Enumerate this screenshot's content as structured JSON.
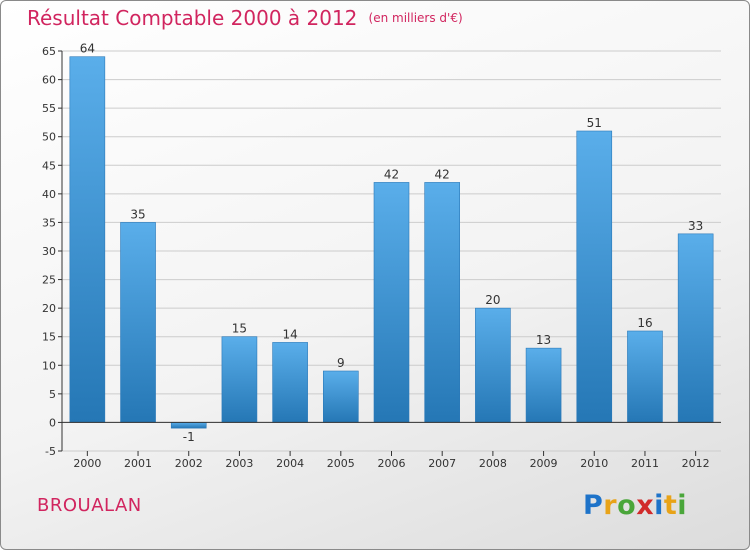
{
  "title": "Résultat Comptable 2000 à 2012",
  "unit": "(en milliers d'€)",
  "place": "BROUALAN",
  "logo": {
    "letters": [
      {
        "ch": "P",
        "color": "#1e73c9"
      },
      {
        "ch": "r",
        "color": "#e8a318"
      },
      {
        "ch": "o",
        "color": "#4aa63a"
      },
      {
        "ch": "x",
        "color": "#d12a2a"
      },
      {
        "ch": "i",
        "color": "#1e73c9"
      },
      {
        "ch": "t",
        "color": "#e8a318"
      },
      {
        "ch": "i",
        "color": "#4aa63a"
      }
    ]
  },
  "colors": {
    "title": "#d1255f",
    "bar_light": "#5aaeea",
    "bar_dark": "#2577b5",
    "grid": "#cccccc",
    "axis": "#333333"
  },
  "chart_data": {
    "type": "bar",
    "title": "Résultat Comptable 2000 à 2012",
    "xlabel": "",
    "ylabel": "",
    "categories": [
      "2000",
      "2001",
      "2002",
      "2003",
      "2004",
      "2005",
      "2006",
      "2007",
      "2008",
      "2009",
      "2010",
      "2011",
      "2012"
    ],
    "values": [
      64,
      35,
      -1,
      15,
      14,
      9,
      42,
      42,
      20,
      13,
      51,
      16,
      33
    ],
    "value_labels": [
      "64",
      "35",
      "-1",
      "15",
      "14",
      "9",
      "42",
      "42",
      "20",
      "13",
      "51",
      "16",
      "33"
    ],
    "ylim": [
      -5,
      65
    ],
    "yticks": [
      -5,
      0,
      5,
      10,
      15,
      20,
      25,
      30,
      35,
      40,
      45,
      50,
      55,
      60,
      65
    ],
    "grid": true
  }
}
